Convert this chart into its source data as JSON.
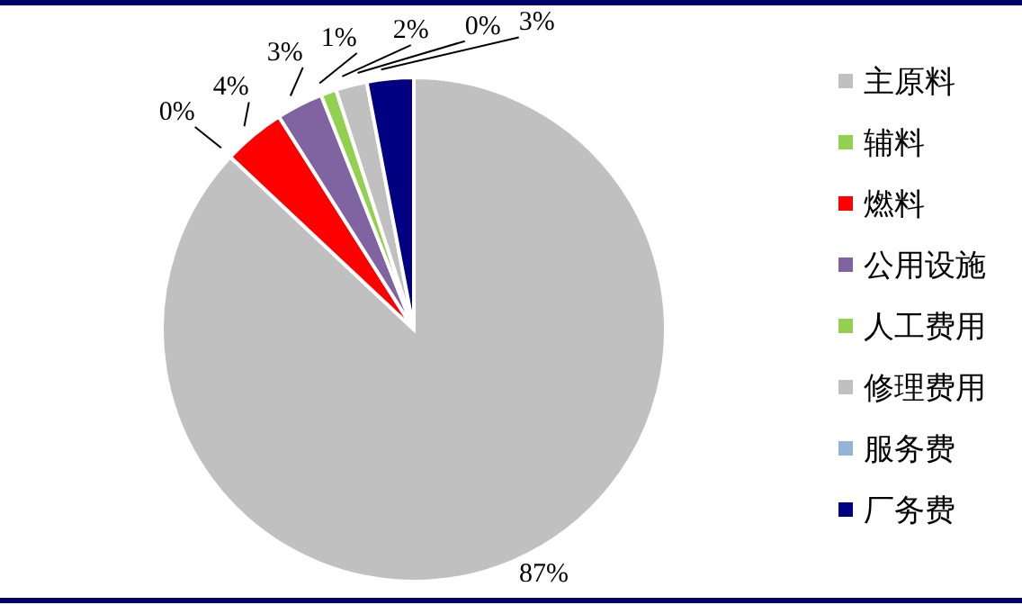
{
  "chart_data": {
    "type": "pie",
    "categories": [
      "主原料",
      "辅料",
      "燃料",
      "公用设施",
      "人工费用",
      "修理费用",
      "服务费",
      "厂务费"
    ],
    "values": [
      87,
      0,
      4,
      3,
      1,
      2,
      0,
      3
    ],
    "colors": [
      "#c0c0c0",
      "#92d050",
      "#ff0000",
      "#8064a2",
      "#92d050",
      "#c0c0c0",
      "#95b3d7",
      "#000080"
    ],
    "value_labels": [
      "87%",
      "0%",
      "4%",
      "3%",
      "1%",
      "2%",
      "0%",
      "3%"
    ],
    "legend": "right"
  }
}
